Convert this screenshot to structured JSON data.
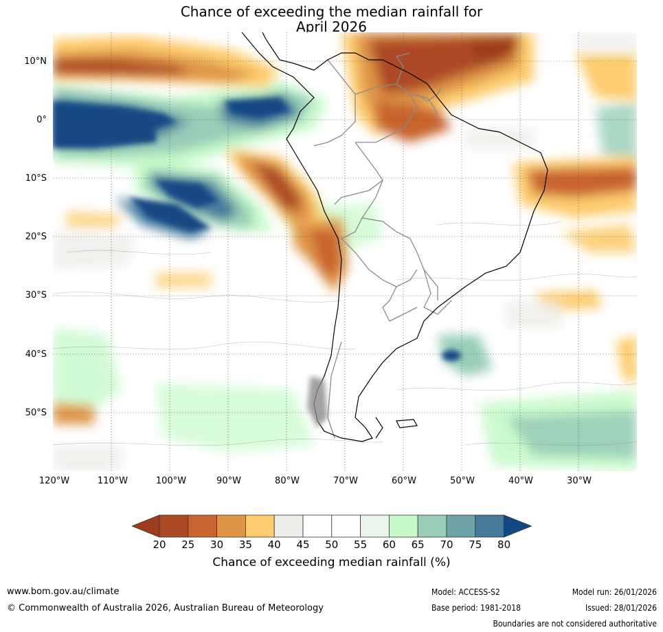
{
  "title": {
    "line1": "Chance of exceeding the median rainfall for",
    "line2": "April 2026"
  },
  "map": {
    "region": "South America",
    "lat_labels": [
      "10°N",
      "0°",
      "10°S",
      "20°S",
      "30°S",
      "40°S",
      "50°S"
    ],
    "lon_labels": [
      "120°W",
      "110°W",
      "100°W",
      "90°W",
      "80°W",
      "70°W",
      "60°W",
      "50°W",
      "40°W",
      "30°W"
    ]
  },
  "colorbar": {
    "ticks": [
      "20",
      "25",
      "30",
      "35",
      "40",
      "45",
      "50",
      "55",
      "60",
      "65",
      "70",
      "75",
      "80"
    ],
    "colors": [
      "#9c3c1c",
      "#ad4a26",
      "#c8642f",
      "#df9547",
      "#fdcc6e",
      "#eeece9",
      "#ffffff",
      "#ffffff",
      "#e9f5ea",
      "#c6f9c9",
      "#98cdb8",
      "#6fa3a8",
      "#457a9b",
      "#124984"
    ],
    "label": "Chance of exceeding median rainfall (%)"
  },
  "footer": {
    "website": "www.bom.gov.au/climate",
    "copyright": "© Commonwealth of Australia 2026, Australian Bureau of Meteorology",
    "model": "Model: ACCESS-S2",
    "base_period": "Base period: 1981-2018",
    "model_run": "Model run: 26/01/2026",
    "issued": "Issued: 28/01/2026",
    "disclaimer": "Boundaries are not considered authoritative"
  }
}
